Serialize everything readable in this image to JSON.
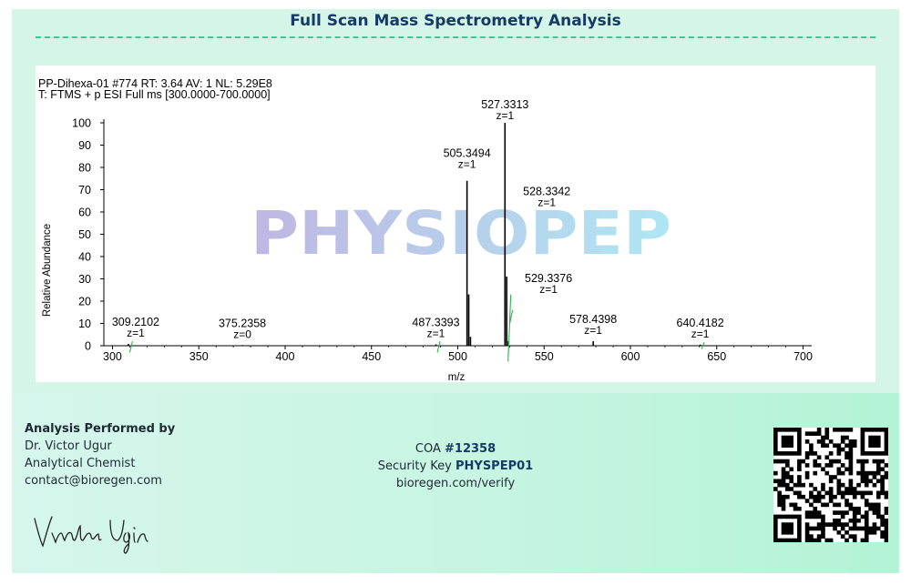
{
  "report": {
    "title": "Full Scan Mass Spectrometry Analysis"
  },
  "chart_data": {
    "type": "bar",
    "header_line1": "PP-Dihexa-01 #774 RT: 3.64 AV: 1 NL: 5.29E8",
    "header_line2": "T: FTMS + p ESI Full ms [300.0000-700.0000]",
    "xlabel": "m/z",
    "ylabel": "Relative Abundance",
    "xlim": [
      295,
      705
    ],
    "ylim": [
      0,
      100
    ],
    "x_ticks": [
      300,
      350,
      400,
      450,
      500,
      550,
      600,
      650,
      700
    ],
    "y_ticks": [
      0,
      10,
      20,
      30,
      40,
      50,
      60,
      70,
      80,
      90,
      100
    ],
    "peaks": [
      {
        "mz": 309.2102,
        "intensity": 0.8
      },
      {
        "mz": 375.2358,
        "intensity": 0.3
      },
      {
        "mz": 487.3393,
        "intensity": 0.6
      },
      {
        "mz": 505.3494,
        "intensity": 74
      },
      {
        "mz": 506.35,
        "intensity": 23
      },
      {
        "mz": 507.35,
        "intensity": 4
      },
      {
        "mz": 527.3313,
        "intensity": 100
      },
      {
        "mz": 528.3342,
        "intensity": 31
      },
      {
        "mz": 529.3376,
        "intensity": 2
      },
      {
        "mz": 578.4398,
        "intensity": 2
      },
      {
        "mz": 640.4182,
        "intensity": 0.5
      }
    ],
    "labels": [
      {
        "mz": 309.2102,
        "text": "309.2102",
        "charge": "z=1"
      },
      {
        "mz": 375.2358,
        "text": "375.2358",
        "charge": "z=0"
      },
      {
        "mz": 487.3393,
        "text": "487.3393",
        "charge": "z=1"
      },
      {
        "mz": 505.3494,
        "text": "505.3494",
        "charge": "z=1"
      },
      {
        "mz": 527.3313,
        "text": "527.3313",
        "charge": "z=1"
      },
      {
        "mz": 528.3342,
        "text": "528.3342",
        "charge": "z=1"
      },
      {
        "mz": 529.3376,
        "text": "529.3376",
        "charge": "z=1"
      },
      {
        "mz": 578.4398,
        "text": "578.4398",
        "charge": "z=1"
      },
      {
        "mz": 640.4182,
        "text": "640.4182",
        "charge": "z=1"
      }
    ],
    "watermark": "PHYSIOPEP",
    "colors": {
      "peaks": "#000000",
      "isotope_marks": "#2ab44a",
      "watermark_start": "#b9aee0",
      "watermark_end": "#a6e4f2"
    }
  },
  "analyst": {
    "heading": "Analysis Performed by",
    "name": "Dr. Victor Ugur",
    "role": "Analytical Chemist",
    "email": "contact@bioregen.com",
    "signature_text": "Victor Ugur"
  },
  "verification": {
    "coa_label": "COA",
    "coa_number": "#12358",
    "security_label": "Security Key",
    "security_key": "PHYSPEP01",
    "verify_url": "bioregen.com/verify",
    "qr_icon": "qr-code-icon"
  }
}
